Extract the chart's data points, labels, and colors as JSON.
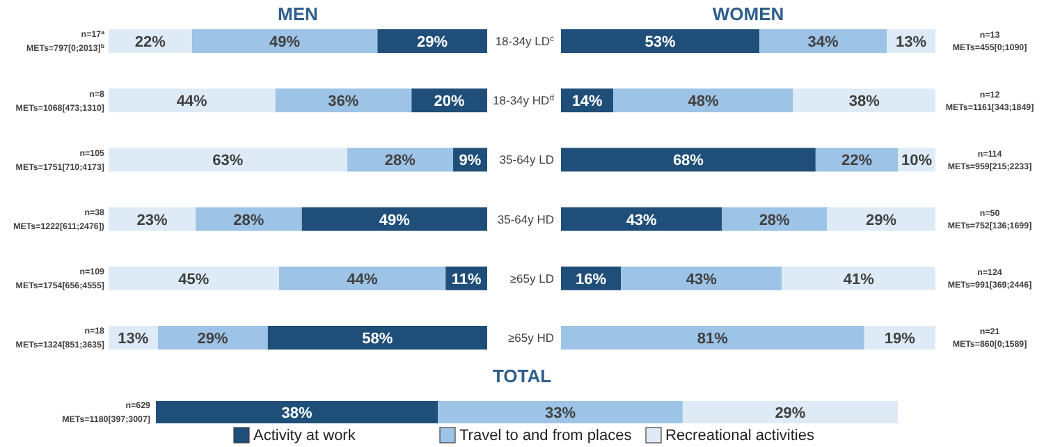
{
  "chart_data": [
    {
      "type": "bar",
      "title": "MEN",
      "orientation": "horizontal",
      "stacked": true,
      "tick_labels": "y",
      "xlim": [
        100,
        0
      ],
      "categories": [
        "n=17$^{a}$\nMETs=797[0;2013]$^{b}$",
        "n=8\nMETs=1068[473;1310]",
        "n=105\nMETs=1751[710;4173]",
        "n=38\nMETs=1222[611;2476])",
        "n=109\nMETs=1754[656;4555]",
        "n=18\nMETs=1324[851;3635]"
      ],
      "series": [
        {
          "color": "#1f4e79",
          "values": [
            29,
            20,
            9,
            49,
            11,
            58
          ],
          "value_labels": [
            "29%",
            "20%",
            "9%",
            "49%",
            "11%",
            "58%"
          ]
        },
        {
          "color": "#9dc3e6",
          "values": [
            49,
            36,
            28,
            28,
            44,
            29
          ],
          "value_labels": [
            "49%",
            "36%",
            "28%",
            "28%",
            "44%",
            "29%"
          ]
        },
        {
          "color": "#deebf7",
          "values": [
            22,
            44,
            63,
            23,
            45,
            13
          ],
          "value_labels": [
            "22%",
            "44%",
            "63%",
            "23%",
            "45%",
            "13%"
          ]
        }
      ]
    },
    {
      "type": "bar",
      "title": "WOMEN",
      "orientation": "horizontal",
      "stacked": true,
      "tick_labels": "y",
      "xlim": [
        0,
        100
      ],
      "categories": [
        "18-34y LD$^{c}$",
        "18-34y HD$^{d}$",
        "35-64y LD",
        "35-64y HD",
        "≥65y LD",
        "≥65y HD"
      ],
      "series": [
        {
          "color": "#1f4e79",
          "values": [
            53,
            14,
            68,
            43,
            16,
            0
          ],
          "value_labels": [
            "53%",
            "14%",
            "68%",
            "43%",
            "16%",
            null
          ]
        },
        {
          "color": "#9dc3e6",
          "values": [
            34,
            48,
            22,
            28,
            43,
            81
          ],
          "value_labels": [
            "34%",
            "48%",
            "22%",
            "28%",
            "43%",
            "81%"
          ]
        },
        {
          "color": "#deebf7",
          "values": [
            13,
            38,
            10,
            29,
            41,
            19
          ],
          "value_labels": [
            "13%",
            "38%",
            "10%",
            "29%",
            "41%",
            "19%"
          ]
        }
      ],
      "annotations": [
        "n=13\nMETs=455[0;1090]",
        "n=12\nMETs=1161[343;1849]",
        "n=114\nMETs=959[215;2233]",
        "n=50\nMETs=752[136;1699]",
        "n=124\nMETs=991[369;2446]",
        "n=21\nMETs=860[0;1589]"
      ]
    },
    {
      "type": "bar",
      "title": "TOTAL",
      "orientation": "horizontal",
      "stacked": true,
      "tick_labels": "y",
      "xlim": [
        0,
        100
      ],
      "legend": "bottom",
      "categories": [
        "n=629\nMETs=1180[397;3007]"
      ],
      "series": [
        {
          "name": "Activity at work",
          "color": "#1f4e79",
          "values": [
            38
          ],
          "value_labels": [
            "38%"
          ]
        },
        {
          "name": "Travel to and from places",
          "color": "#9dc3e6",
          "values": [
            33
          ],
          "value_labels": [
            "33%"
          ]
        },
        {
          "name": "Recreational activities",
          "color": "#deebf7",
          "values": [
            29
          ],
          "value_labels": [
            "29%"
          ]
        }
      ]
    }
  ]
}
